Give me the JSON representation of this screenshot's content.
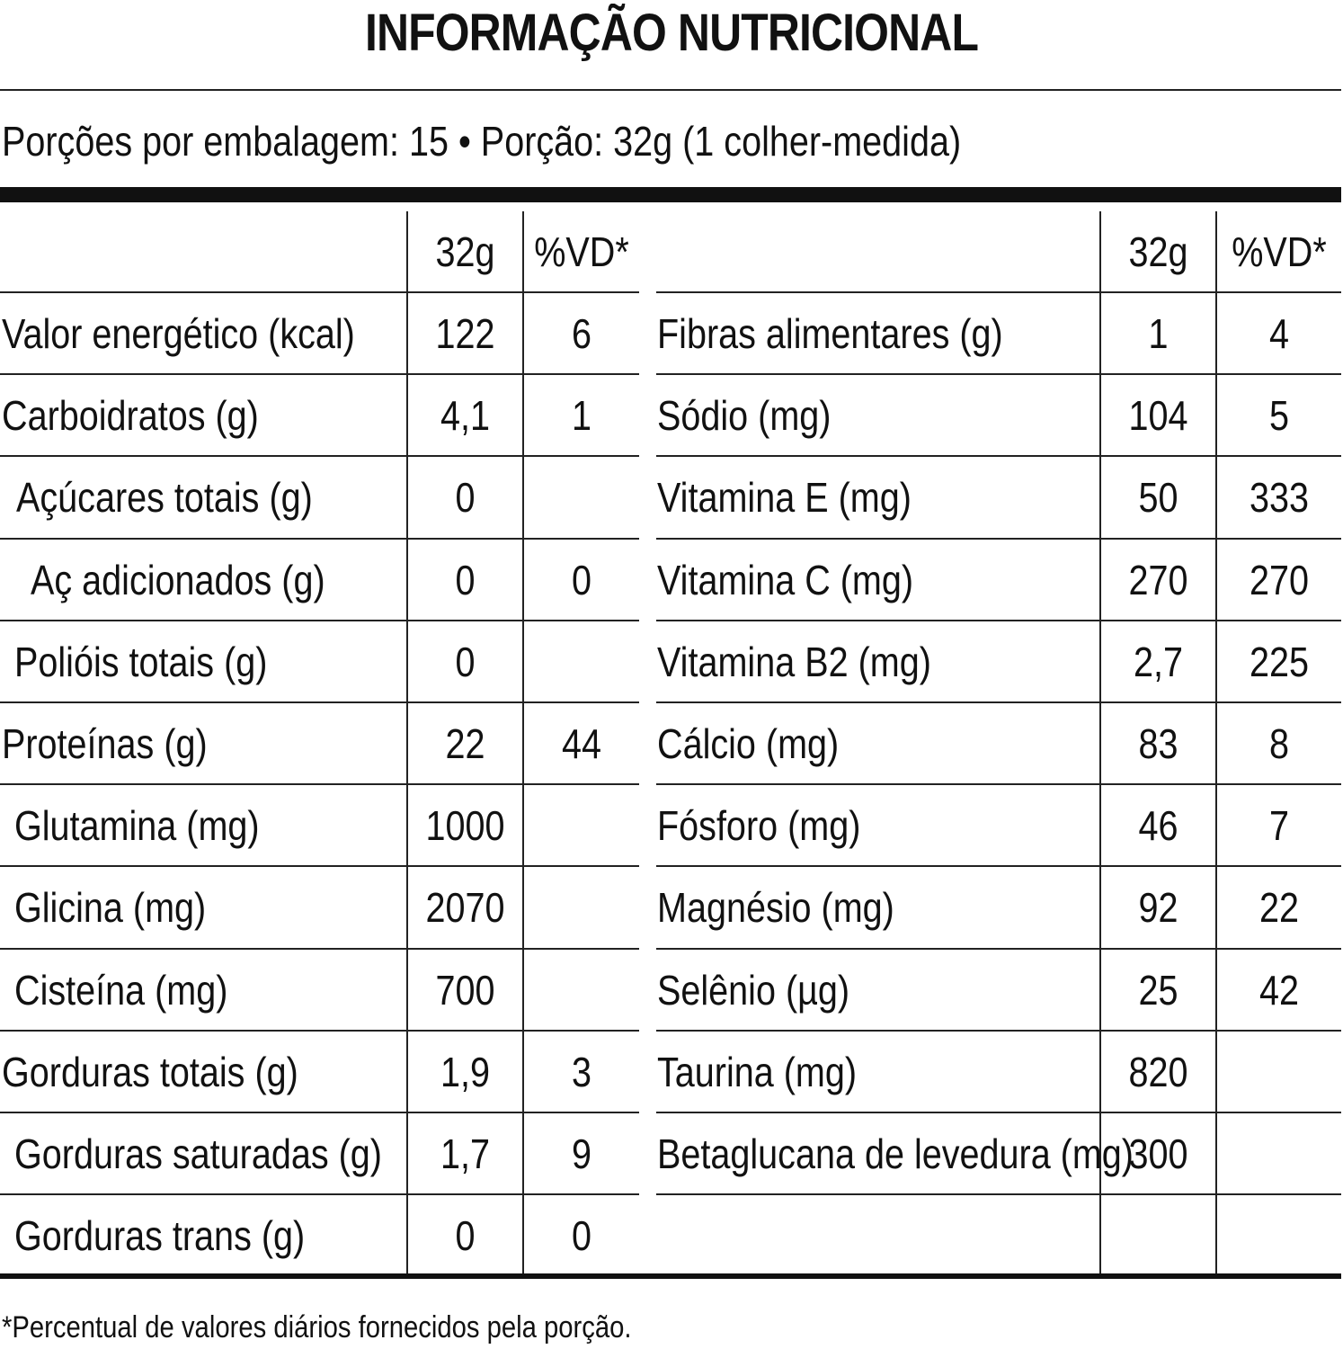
{
  "title": "INFORMAÇÃO NUTRICIONAL",
  "serving": "Porções por embalagem: 15 • Porção: 32g (1 colher-medida)",
  "headers": {
    "amount": "32g",
    "dv": "%VD*"
  },
  "left_rows": [
    {
      "label": "Valor energético (kcal)",
      "amount": "122",
      "dv": "6"
    },
    {
      "label": "Carboidratos (g)",
      "amount": "4,1",
      "dv": "1"
    },
    {
      "label": "Açúcares totais (g)",
      "amount": "0",
      "dv": ""
    },
    {
      "label": "Aç adicionados (g)",
      "amount": "0",
      "dv": "0"
    },
    {
      "label": "Polióis totais (g)",
      "amount": "0",
      "dv": ""
    },
    {
      "label": "Proteínas (g)",
      "amount": "22",
      "dv": "44"
    },
    {
      "label": "Glutamina (mg)",
      "amount": "1000",
      "dv": ""
    },
    {
      "label": "Glicina (mg)",
      "amount": "2070",
      "dv": ""
    },
    {
      "label": "Cisteína (mg)",
      "amount": "700",
      "dv": ""
    },
    {
      "label": "Gorduras totais (g)",
      "amount": "1,9",
      "dv": "3"
    },
    {
      "label": "Gorduras saturadas (g)",
      "amount": "1,7",
      "dv": "9"
    },
    {
      "label": "Gorduras trans (g)",
      "amount": "0",
      "dv": "0"
    }
  ],
  "right_rows": [
    {
      "label": "Fibras alimentares (g)",
      "amount": "1",
      "dv": "4"
    },
    {
      "label": "Sódio (mg)",
      "amount": "104",
      "dv": "5"
    },
    {
      "label": "Vitamina E (mg)",
      "amount": "50",
      "dv": "333"
    },
    {
      "label": "Vitamina C (mg)",
      "amount": "270",
      "dv": "270"
    },
    {
      "label": "Vitamina B2 (mg)",
      "amount": "2,7",
      "dv": "225"
    },
    {
      "label": "Cálcio (mg)",
      "amount": "83",
      "dv": "8"
    },
    {
      "label": "Fósforo (mg)",
      "amount": "46",
      "dv": "7"
    },
    {
      "label": "Magnésio (mg)",
      "amount": "92",
      "dv": "22"
    },
    {
      "label": "Selênio (µg)",
      "amount": "25",
      "dv": "42"
    },
    {
      "label": "Taurina (mg)",
      "amount": "820",
      "dv": ""
    },
    {
      "label": "Betaglucana de levedura (mg)",
      "amount": "300",
      "dv": ""
    },
    {
      "label": "",
      "amount": "",
      "dv": ""
    }
  ],
  "footnote": "*Percentual de valores diários fornecidos pela porção."
}
